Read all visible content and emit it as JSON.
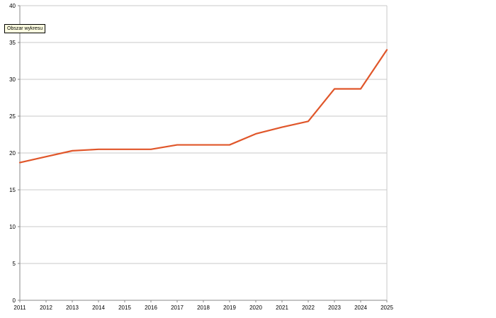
{
  "tooltip": {
    "text": "Obszar wykresu"
  },
  "chart_data": {
    "type": "line",
    "x": [
      2011,
      2012,
      2013,
      2014,
      2015,
      2016,
      2017,
      2018,
      2019,
      2020,
      2021,
      2022,
      2023,
      2024,
      2025
    ],
    "series": [
      {
        "values": [
          18.7,
          19.5,
          20.3,
          20.5,
          20.5,
          20.5,
          21.1,
          21.1,
          21.1,
          22.6,
          23.5,
          24.3,
          28.7,
          28.7,
          34.0
        ]
      }
    ],
    "x_ticks": [
      "2011",
      "2012",
      "2013",
      "2014",
      "2015",
      "2016",
      "2017",
      "2018",
      "2019",
      "2020",
      "2021",
      "2022",
      "2023",
      "2024",
      "2025"
    ],
    "y_ticks": [
      "0",
      "5",
      "10",
      "15",
      "20",
      "25",
      "30",
      "35",
      "40"
    ],
    "ylim": [
      0,
      40
    ],
    "xlim": [
      2011,
      2025
    ],
    "grid": true,
    "legend": "none",
    "colors": {
      "line": "#e0562a",
      "grid": "#c8c8c8",
      "axis": "#8a8a8a"
    }
  }
}
